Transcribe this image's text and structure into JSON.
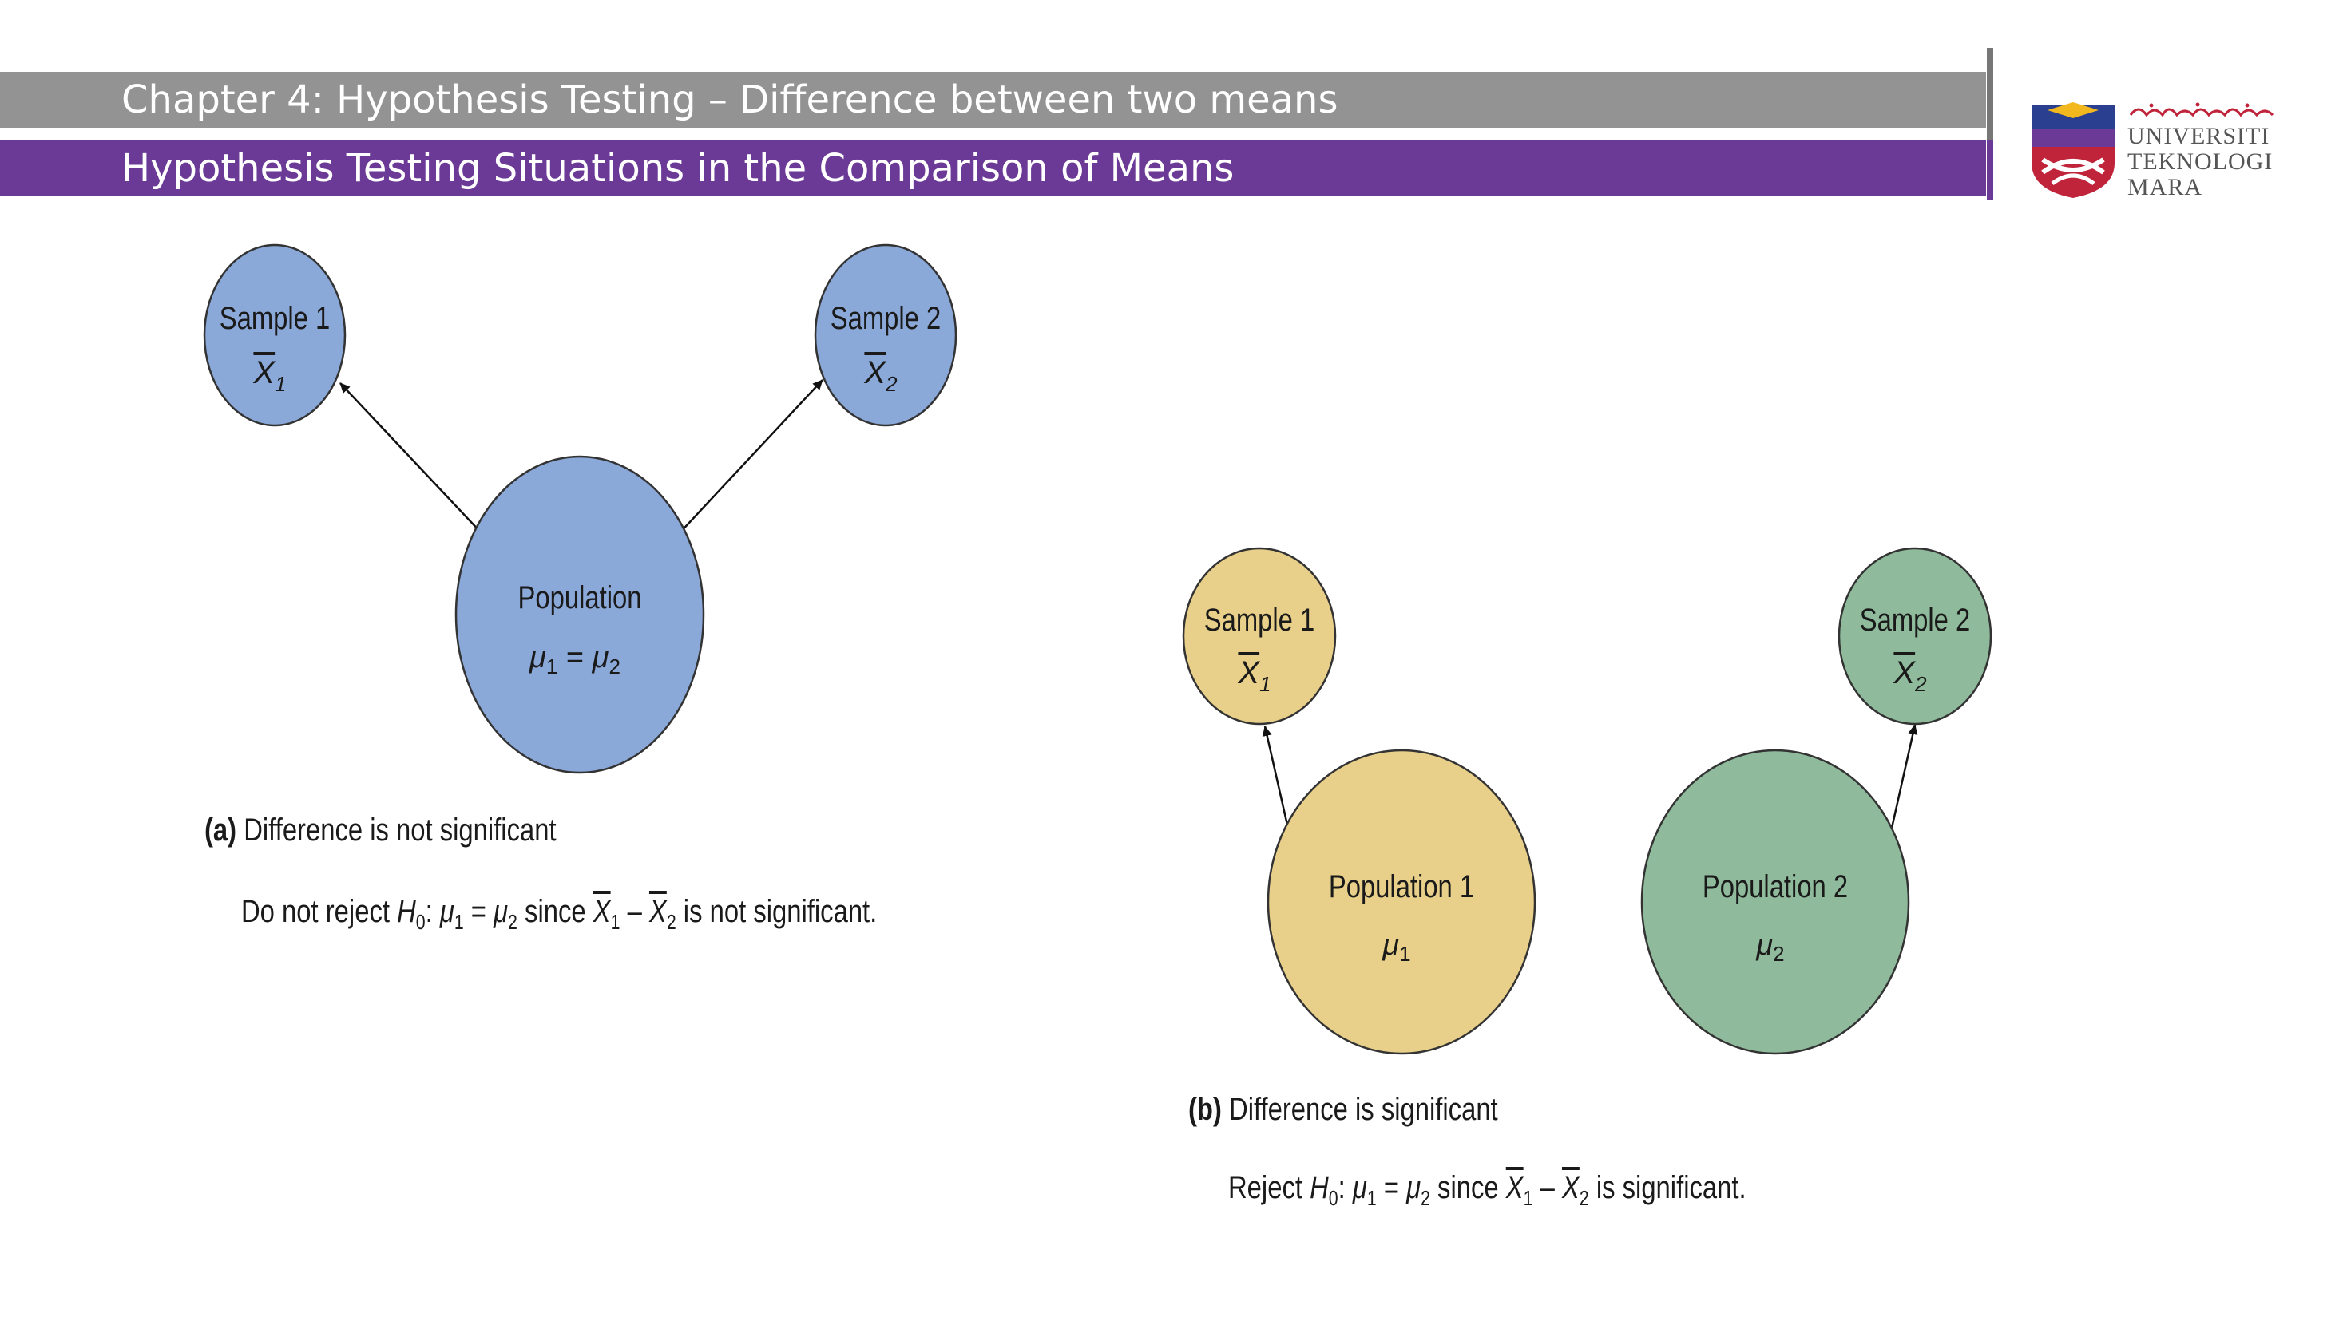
{
  "header": {
    "chapter_title": "Chapter 4: Hypothesis Testing – Difference between two means",
    "section_title": "Hypothesis Testing Situations in the Comparison of Means"
  },
  "logo": {
    "line1": "UNIVERSITI",
    "line2": "TEKNOLOGI",
    "line3": "MARA",
    "colors": {
      "shield_red": "#c0243a",
      "shield_blue": "#2a3f8f",
      "shield_yellow": "#f2b81e",
      "shield_purple": "#6b3a96"
    }
  },
  "diagram_a": {
    "sample1": {
      "label": "Sample 1",
      "stat": "X",
      "sub": "1"
    },
    "sample2": {
      "label": "Sample 2",
      "stat": "X",
      "sub": "2"
    },
    "population": {
      "label": "Population",
      "param": "μ",
      "sub1": "1",
      "eq": " = ",
      "sub2": "2"
    },
    "caption_tag": "(a)",
    "caption": "Difference is not significant",
    "conclusion_pre": "Do not reject ",
    "conclusion_post": " is not significant.",
    "color": "#8aa8d8"
  },
  "diagram_b": {
    "sample1": {
      "label": "Sample 1",
      "stat": "X",
      "sub": "1"
    },
    "sample2": {
      "label": "Sample 2",
      "stat": "X",
      "sub": "2"
    },
    "population1": {
      "label": "Population 1",
      "param": "μ",
      "sub": "1"
    },
    "population2": {
      "label": "Population 2",
      "param": "μ",
      "sub": "2"
    },
    "caption_tag": "(b)",
    "caption": "Difference is significant",
    "conclusion_pre": "Reject ",
    "conclusion_post": " is significant.",
    "color_1": "#e8d08a",
    "color_2": "#8fbb9c"
  },
  "math": {
    "h": "H",
    "h_sub": "0",
    "mu": "μ",
    "one": "1",
    "two": "2",
    "eq": " = ",
    "since": " since ",
    "x": "X",
    "minus": " – ",
    "colon": ": "
  }
}
